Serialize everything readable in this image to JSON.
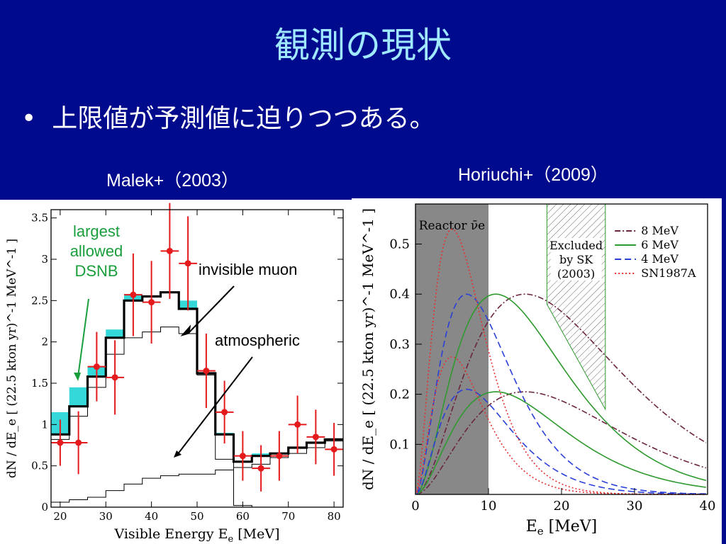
{
  "slide": {
    "title": "観測の現状",
    "bullet_marker": "•",
    "bullet": "上限値が予測値に迫りつつある。",
    "left_caption": "Malek+（2003）",
    "right_caption": "Horiuchi+（2009）"
  },
  "colors": {
    "background": "#000a8c",
    "title": "#9fe8ff",
    "dsnb_fill": "#35d8d8",
    "data_points": "#e41a1c",
    "annotation_green": "#1a9e3c",
    "reactor_band": "#888888",
    "line_8mev": "#6b2440",
    "line_6mev": "#2f9a2f",
    "line_4mev": "#2a3fd8",
    "line_sn1987a": "#e63030"
  },
  "chart_data": [
    {
      "type": "bar",
      "xlabel": "Visible Energy E",
      "xlabel_sub": "e",
      "xlabel_unit": " [MeV]",
      "ylabel": "dN / dE_e  [ (22.5 kton yr)^-1 MeV^-1 ]",
      "xlim": [
        18,
        82
      ],
      "ylim": [
        0,
        3.6
      ],
      "x_ticks": [
        20,
        30,
        40,
        50,
        60,
        70,
        80
      ],
      "y_ticks": [
        0,
        0.5,
        1,
        1.5,
        2,
        2.5,
        3,
        3.5
      ],
      "bin_edges": [
        18,
        22,
        26,
        30,
        34,
        38,
        42,
        46,
        50,
        54,
        58,
        62,
        66,
        70,
        74,
        78,
        82
      ],
      "series": [
        {
          "name": "largest allowed DSNB",
          "values": [
            1.15,
            1.45,
            1.7,
            2.15,
            2.58,
            2.55,
            2.6,
            2.5,
            1.62,
            0.9,
            0.55,
            0.65,
            0.65,
            0.72,
            0.78,
            0.82
          ]
        },
        {
          "name": "total (thick)",
          "values": [
            0.88,
            1.22,
            1.58,
            2.05,
            2.5,
            2.55,
            2.6,
            2.4,
            1.62,
            0.88,
            0.55,
            0.62,
            0.65,
            0.72,
            0.78,
            0.82
          ]
        },
        {
          "name": "invisible muon",
          "values": [
            0.82,
            1.1,
            1.45,
            1.85,
            2.05,
            2.12,
            2.18,
            2.1,
            1.6,
            0.58,
            0.02,
            0,
            0,
            0,
            0,
            0
          ]
        },
        {
          "name": "atmospheric",
          "values": [
            0.06,
            0.09,
            0.12,
            0.2,
            0.28,
            0.35,
            0.38,
            0.4,
            0.4,
            0.45,
            0.48,
            0.52,
            0.6,
            0.65,
            0.72,
            0.8
          ]
        }
      ],
      "points": {
        "x": [
          20,
          24,
          28,
          32,
          36,
          40,
          44,
          48,
          52,
          56,
          60,
          64,
          68,
          72,
          76,
          80
        ],
        "y": [
          0.78,
          0.78,
          1.7,
          1.57,
          2.57,
          2.48,
          3.1,
          2.95,
          1.65,
          1.15,
          0.62,
          0.47,
          0.62,
          1.0,
          0.85,
          0.7
        ],
        "err": [
          0.28,
          0.38,
          0.42,
          0.45,
          0.5,
          0.5,
          0.58,
          0.57,
          0.45,
          0.38,
          0.3,
          0.28,
          0.3,
          0.35,
          0.33,
          0.32
        ]
      },
      "annotations": [
        {
          "text_lines": [
            "largest",
            "allowed",
            "DSNB"
          ]
        },
        {
          "text": "invisible muon"
        },
        {
          "text": "atmospheric"
        }
      ]
    },
    {
      "type": "line",
      "xlabel": "E",
      "xlabel_sub": "e",
      "xlabel_unit": " [MeV]",
      "ylabel": "dN / dE_e  [ (22.5 kton yr)^-1 MeV^-1 ]",
      "xlim": [
        0,
        40
      ],
      "ylim": [
        0,
        0.58
      ],
      "x_ticks": [
        0,
        10,
        20,
        30,
        40
      ],
      "y_ticks": [
        0.1,
        0.2,
        0.3,
        0.4,
        0.5
      ],
      "reactor_band": {
        "x": [
          0,
          10
        ],
        "label": "Reactor ν̄e"
      },
      "excluded_region": {
        "label_lines": [
          "Excluded",
          "by SK",
          "(2003)"
        ],
        "x": [
          18,
          26
        ],
        "y_low_left": 0.18,
        "y_low_right": 0.17
      },
      "series": [
        {
          "name": "8 MeV",
          "peak_x": [
            15,
            15
          ],
          "peak_y": [
            0.4,
            0.205
          ]
        },
        {
          "name": "6 MeV",
          "peak_x": [
            11,
            11
          ],
          "peak_y": [
            0.4,
            0.205
          ]
        },
        {
          "name": "4 MeV",
          "peak_x": [
            7,
            7
          ],
          "peak_y": [
            0.4,
            0.21
          ]
        },
        {
          "name": "SN1987A",
          "peak_x": [
            5,
            5
          ],
          "peak_y": [
            0.53,
            0.275
          ]
        }
      ]
    }
  ]
}
